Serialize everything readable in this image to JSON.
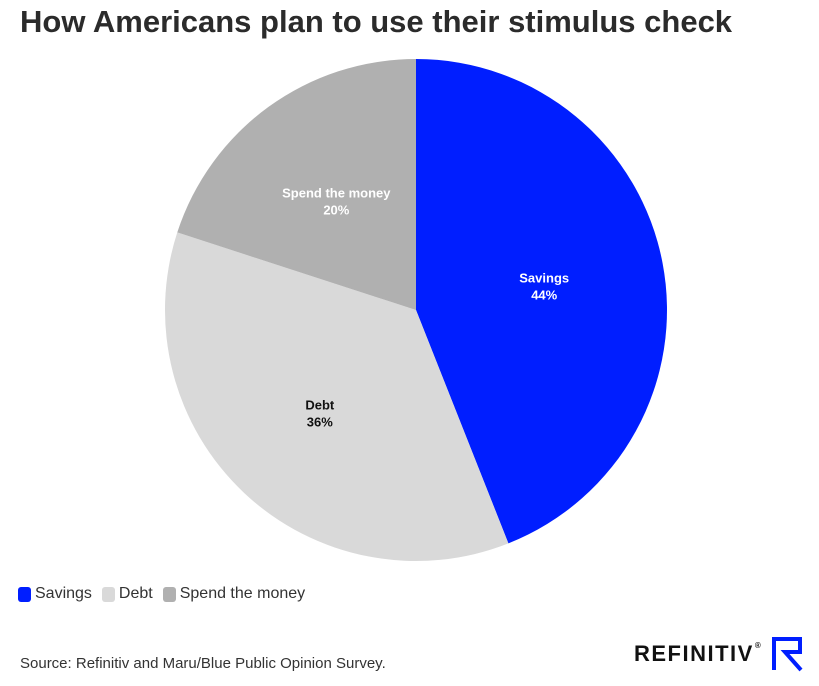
{
  "title": "How Americans plan to use their stimulus check",
  "source": "Source: Refinitiv and Maru/Blue Public Opinion Survey.",
  "brand": {
    "name": "REFINITIV",
    "mark": "®",
    "icon": "refinitiv-r-icon",
    "accent": "#001eff"
  },
  "chart_data": {
    "type": "pie",
    "title": "How Americans plan to use their stimulus check",
    "start_angle_deg": 0,
    "direction": "clockwise",
    "legend_position": "bottom-left",
    "slices": [
      {
        "label": "Savings",
        "value": 44,
        "value_label": "44%",
        "color": "#001eff",
        "text_color": "#ffffff"
      },
      {
        "label": "Debt",
        "value": 36,
        "value_label": "36%",
        "color": "#d9d9d9",
        "text_color": "#111111"
      },
      {
        "label": "Spend the money",
        "value": 20,
        "value_label": "20%",
        "color": "#b0b0b0",
        "text_color": "#ffffff"
      }
    ]
  }
}
